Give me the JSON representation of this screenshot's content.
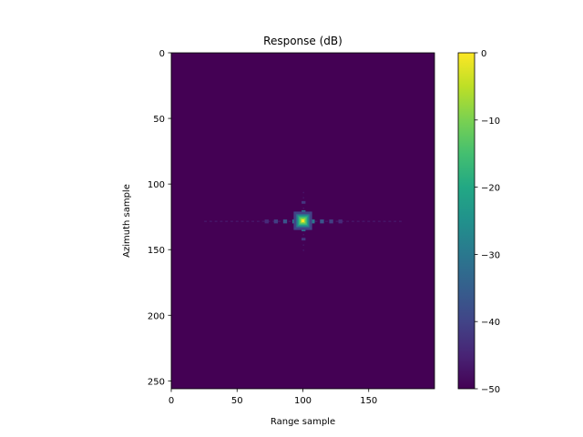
{
  "chart_data": {
    "type": "heatmap",
    "title": "Response (dB)",
    "xlabel": "Range sample",
    "ylabel": "Azimuth sample",
    "xlim": [
      0,
      200
    ],
    "ylim": [
      256,
      0
    ],
    "xticks": [
      0,
      50,
      100,
      150
    ],
    "yticks": [
      0,
      50,
      100,
      150,
      200,
      250
    ],
    "colorbar": {
      "min": -50,
      "max": 0,
      "ticks": [
        0,
        -10,
        -20,
        -30,
        -40,
        -50
      ],
      "colormap": "viridis"
    },
    "background_db": -50,
    "peak": {
      "range_sample": 100,
      "azimuth_sample": 128,
      "value_db": 0
    },
    "sidelobes": {
      "range_cut": [
        {
          "range_sample": 93,
          "value_db": -30
        },
        {
          "range_sample": 107,
          "value_db": -30
        },
        {
          "range_sample": 86,
          "value_db": -37
        },
        {
          "range_sample": 114,
          "value_db": -37
        },
        {
          "range_sample": 79,
          "value_db": -41
        },
        {
          "range_sample": 121,
          "value_db": -41
        },
        {
          "range_sample": 72,
          "value_db": -44
        },
        {
          "range_sample": 128,
          "value_db": -44
        }
      ],
      "azimuth_cut": [
        {
          "azimuth_sample": 121,
          "value_db": -32
        },
        {
          "azimuth_sample": 135,
          "value_db": -32
        },
        {
          "azimuth_sample": 114,
          "value_db": -42
        },
        {
          "azimuth_sample": 142,
          "value_db": -42
        }
      ]
    }
  },
  "colors": {
    "viridis_low": "#440154",
    "viridis_high": "#fde725"
  }
}
